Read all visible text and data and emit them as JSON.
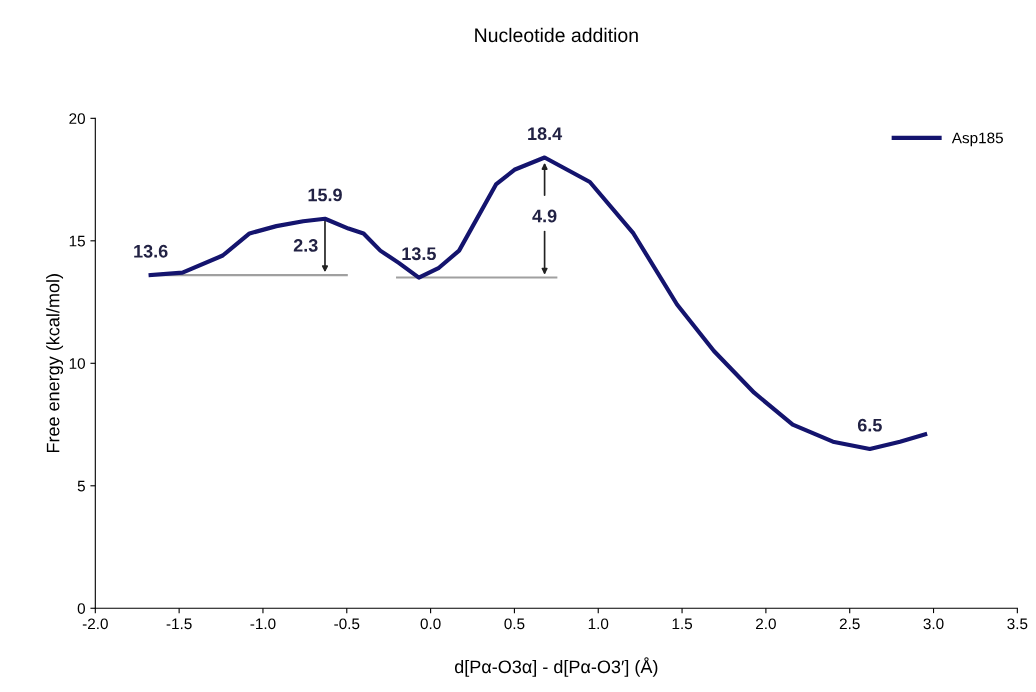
{
  "chart_data": {
    "type": "line",
    "title": "Nucleotide addition",
    "xlabel": "d[Pα-O3α] - d[Pα-O3′] (Å)",
    "ylabel": "Free energy (kcal/mol)",
    "series": [
      {
        "name": "Asp185",
        "color": "#14146e",
        "x": [
          -1.67,
          -1.48,
          -1.24,
          -1.08,
          -0.92,
          -0.76,
          -0.63,
          -0.49,
          -0.4,
          -0.3,
          -0.19,
          -0.07,
          0.05,
          0.17,
          0.39,
          0.5,
          0.68,
          0.95,
          1.21,
          1.47,
          1.69,
          1.93,
          2.16,
          2.4,
          2.62,
          2.8,
          2.95
        ],
        "values": [
          13.6,
          13.7,
          14.4,
          15.3,
          15.6,
          15.8,
          15.9,
          15.5,
          15.3,
          14.6,
          14.1,
          13.5,
          13.9,
          14.6,
          17.3,
          17.9,
          18.4,
          17.4,
          15.3,
          12.4,
          10.5,
          8.8,
          7.5,
          6.8,
          6.5,
          6.8,
          7.1
        ]
      },
      {
        "color": "#a0a0a0",
        "x": [
          -1.67,
          -0.5
        ],
        "values": [
          13.6,
          13.6
        ]
      },
      {
        "color": "#a0a0a0",
        "x": [
          -0.2,
          0.75
        ],
        "values": [
          13.5,
          13.5
        ]
      }
    ],
    "annotations": [
      {
        "text": "13.6",
        "x": -1.67,
        "y": 13.6
      },
      {
        "text": "15.9",
        "x": -0.63,
        "y": 15.9
      },
      {
        "text": "13.5",
        "x": -0.07,
        "y": 13.5
      },
      {
        "text": "18.4",
        "x": 0.68,
        "y": 18.4
      },
      {
        "text": "6.5",
        "x": 2.62,
        "y": 6.5
      },
      "2.3",
      "4.9"
    ],
    "xlim": [
      -2.0,
      3.5
    ],
    "xticks": [
      {
        "value": -2.0,
        "label": "-2.0"
      },
      {
        "value": -1.5,
        "label": "-1.5"
      },
      {
        "value": -1.0,
        "label": "-1.0"
      },
      {
        "value": -0.5,
        "label": "-0.5"
      },
      {
        "value": 0.0,
        "label": "0.0"
      },
      {
        "value": 0.5,
        "label": "0.5"
      },
      {
        "value": 1.0,
        "label": "1.0"
      },
      {
        "value": 1.5,
        "label": "1.5"
      },
      {
        "value": 2.0,
        "label": "2.0"
      },
      {
        "value": 2.5,
        "label": "2.5"
      },
      {
        "value": 3.0,
        "label": "3.0"
      },
      {
        "value": 3.5,
        "label": "3.5"
      }
    ],
    "ylim": [
      0,
      20
    ],
    "yticks": [
      0,
      5,
      10,
      15,
      20
    ],
    "grid": false,
    "legend": "top right",
    "line_style": "solid",
    "marker": "none"
  }
}
